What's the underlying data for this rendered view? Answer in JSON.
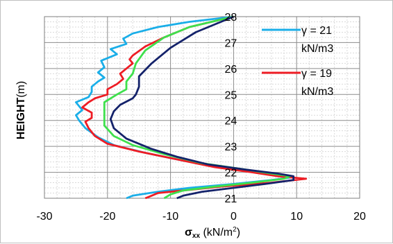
{
  "chart_data": {
    "type": "line",
    "xlabel": {
      "main": "σ",
      "sub": "xx",
      "units": " (kN/m",
      "sup": "2",
      "close": ")"
    },
    "ylabel": {
      "bold": "HEIGHT",
      "rest": "(m)"
    },
    "xlim": [
      -30,
      20
    ],
    "ylim": [
      21,
      28
    ],
    "x_ticks": [
      "-30",
      "-20",
      "-10",
      "0",
      "10",
      "20"
    ],
    "y_ticks": [
      "21",
      "22",
      "23",
      "24",
      "25",
      "26",
      "27",
      "28"
    ],
    "grid": true,
    "legend_position": "top-right",
    "series": [
      {
        "name": "γ = 21 kN/m3",
        "color": "#1aaee8",
        "x": [
          -17,
          -16,
          -12,
          -7,
          0,
          6,
          9,
          7,
          4,
          -2,
          -8,
          -14,
          -19,
          -21.5,
          -23.5,
          -24.5,
          -25,
          -24.5,
          -24,
          -24.5,
          -25,
          -23,
          -22.5,
          -22.5,
          -21.5,
          -20.5,
          -21.5,
          -20.5,
          -21,
          -18.5,
          -19.5,
          -17,
          -17.5,
          -16,
          -12,
          -7,
          0
        ],
        "y": [
          21.0,
          21.1,
          21.25,
          21.4,
          21.55,
          21.7,
          21.8,
          21.9,
          22.0,
          22.2,
          22.45,
          22.75,
          23.05,
          23.35,
          23.7,
          24.0,
          24.2,
          24.3,
          24.4,
          24.55,
          24.7,
          24.9,
          25.1,
          25.3,
          25.5,
          25.65,
          25.85,
          26.05,
          26.3,
          26.55,
          26.75,
          26.95,
          27.15,
          27.35,
          27.6,
          27.8,
          28.0
        ]
      },
      {
        "name": "γ = 19 kN/m3",
        "color": "#ee1c24",
        "x": [
          -14,
          -13,
          -12,
          -8,
          -2,
          6,
          11.5,
          7,
          3,
          -3,
          -9,
          -15,
          -20,
          -22,
          -23,
          -23.5,
          -22.5,
          -22.5,
          -24,
          -23,
          -22,
          -20,
          -20,
          -18.5,
          -17.5,
          -18,
          -17,
          -16,
          -16.5,
          -16,
          -14,
          -11,
          -7,
          0
        ],
        "y": [
          21.0,
          21.1,
          21.2,
          21.3,
          21.45,
          21.6,
          21.75,
          21.85,
          22.0,
          22.2,
          22.5,
          22.8,
          23.1,
          23.4,
          23.7,
          23.95,
          24.1,
          24.3,
          24.5,
          24.7,
          24.85,
          25.0,
          25.2,
          25.4,
          25.6,
          25.8,
          26.0,
          26.2,
          26.35,
          26.5,
          26.85,
          27.2,
          27.6,
          28.0
        ]
      },
      {
        "name": "",
        "color": "#3ee04c",
        "x": [
          -11,
          -10,
          -8,
          -3,
          3,
          8,
          9,
          6,
          2,
          -5,
          -11,
          -16,
          -19,
          -20.5,
          -20.5,
          -20.5,
          -20.5,
          -18.5,
          -17,
          -17,
          -16,
          -15.5,
          -14,
          -11,
          -7,
          0
        ],
        "y": [
          21.0,
          21.15,
          21.3,
          21.45,
          21.6,
          21.75,
          21.85,
          21.95,
          22.1,
          22.35,
          22.7,
          23.05,
          23.4,
          23.8,
          24.1,
          24.4,
          24.7,
          25.0,
          25.2,
          25.5,
          25.8,
          26.2,
          26.7,
          27.2,
          27.6,
          28.0
        ]
      },
      {
        "name": "",
        "color": "#14226a",
        "x": [
          -9,
          -8,
          -5,
          0,
          5,
          9.5,
          9.5,
          7,
          2,
          -4,
          -9,
          -13,
          -17,
          -19,
          -19.5,
          -19,
          -18,
          -16,
          -15.5,
          -15,
          -15,
          -13,
          -10,
          -6,
          0
        ],
        "y": [
          21.0,
          21.1,
          21.25,
          21.4,
          21.55,
          21.7,
          21.85,
          21.95,
          22.1,
          22.3,
          22.6,
          22.9,
          23.3,
          23.7,
          24.05,
          24.35,
          24.6,
          24.85,
          25.0,
          25.3,
          25.7,
          26.2,
          26.8,
          27.4,
          28.0
        ]
      }
    ]
  }
}
